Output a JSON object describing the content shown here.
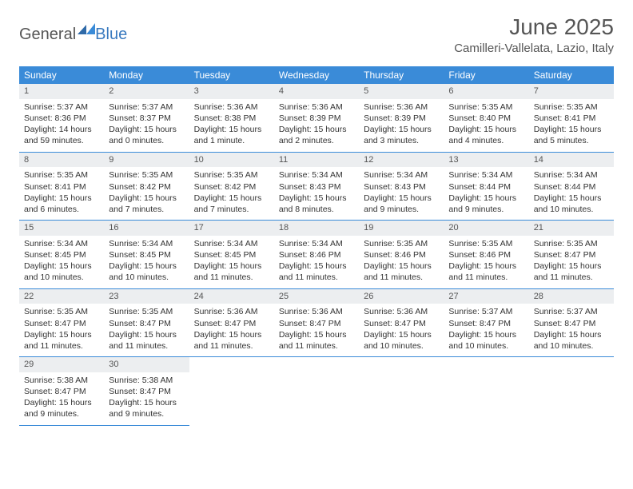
{
  "brand": {
    "part1": "General",
    "part2": "Blue"
  },
  "title": "June 2025",
  "location": "Camilleri-Vallelata, Lazio, Italy",
  "colors": {
    "header_bg": "#3a8bd8",
    "header_text": "#ffffff",
    "daynum_bg": "#eceef0",
    "border": "#3a8bd8",
    "brand_blue": "#3a7abf",
    "text": "#333333"
  },
  "weekdays": [
    "Sunday",
    "Monday",
    "Tuesday",
    "Wednesday",
    "Thursday",
    "Friday",
    "Saturday"
  ],
  "days": [
    {
      "n": "1",
      "sr": "Sunrise: 5:37 AM",
      "ss": "Sunset: 8:36 PM",
      "dl": "Daylight: 14 hours and 59 minutes."
    },
    {
      "n": "2",
      "sr": "Sunrise: 5:37 AM",
      "ss": "Sunset: 8:37 PM",
      "dl": "Daylight: 15 hours and 0 minutes."
    },
    {
      "n": "3",
      "sr": "Sunrise: 5:36 AM",
      "ss": "Sunset: 8:38 PM",
      "dl": "Daylight: 15 hours and 1 minute."
    },
    {
      "n": "4",
      "sr": "Sunrise: 5:36 AM",
      "ss": "Sunset: 8:39 PM",
      "dl": "Daylight: 15 hours and 2 minutes."
    },
    {
      "n": "5",
      "sr": "Sunrise: 5:36 AM",
      "ss": "Sunset: 8:39 PM",
      "dl": "Daylight: 15 hours and 3 minutes."
    },
    {
      "n": "6",
      "sr": "Sunrise: 5:35 AM",
      "ss": "Sunset: 8:40 PM",
      "dl": "Daylight: 15 hours and 4 minutes."
    },
    {
      "n": "7",
      "sr": "Sunrise: 5:35 AM",
      "ss": "Sunset: 8:41 PM",
      "dl": "Daylight: 15 hours and 5 minutes."
    },
    {
      "n": "8",
      "sr": "Sunrise: 5:35 AM",
      "ss": "Sunset: 8:41 PM",
      "dl": "Daylight: 15 hours and 6 minutes."
    },
    {
      "n": "9",
      "sr": "Sunrise: 5:35 AM",
      "ss": "Sunset: 8:42 PM",
      "dl": "Daylight: 15 hours and 7 minutes."
    },
    {
      "n": "10",
      "sr": "Sunrise: 5:35 AM",
      "ss": "Sunset: 8:42 PM",
      "dl": "Daylight: 15 hours and 7 minutes."
    },
    {
      "n": "11",
      "sr": "Sunrise: 5:34 AM",
      "ss": "Sunset: 8:43 PM",
      "dl": "Daylight: 15 hours and 8 minutes."
    },
    {
      "n": "12",
      "sr": "Sunrise: 5:34 AM",
      "ss": "Sunset: 8:43 PM",
      "dl": "Daylight: 15 hours and 9 minutes."
    },
    {
      "n": "13",
      "sr": "Sunrise: 5:34 AM",
      "ss": "Sunset: 8:44 PM",
      "dl": "Daylight: 15 hours and 9 minutes."
    },
    {
      "n": "14",
      "sr": "Sunrise: 5:34 AM",
      "ss": "Sunset: 8:44 PM",
      "dl": "Daylight: 15 hours and 10 minutes."
    },
    {
      "n": "15",
      "sr": "Sunrise: 5:34 AM",
      "ss": "Sunset: 8:45 PM",
      "dl": "Daylight: 15 hours and 10 minutes."
    },
    {
      "n": "16",
      "sr": "Sunrise: 5:34 AM",
      "ss": "Sunset: 8:45 PM",
      "dl": "Daylight: 15 hours and 10 minutes."
    },
    {
      "n": "17",
      "sr": "Sunrise: 5:34 AM",
      "ss": "Sunset: 8:45 PM",
      "dl": "Daylight: 15 hours and 11 minutes."
    },
    {
      "n": "18",
      "sr": "Sunrise: 5:34 AM",
      "ss": "Sunset: 8:46 PM",
      "dl": "Daylight: 15 hours and 11 minutes."
    },
    {
      "n": "19",
      "sr": "Sunrise: 5:35 AM",
      "ss": "Sunset: 8:46 PM",
      "dl": "Daylight: 15 hours and 11 minutes."
    },
    {
      "n": "20",
      "sr": "Sunrise: 5:35 AM",
      "ss": "Sunset: 8:46 PM",
      "dl": "Daylight: 15 hours and 11 minutes."
    },
    {
      "n": "21",
      "sr": "Sunrise: 5:35 AM",
      "ss": "Sunset: 8:47 PM",
      "dl": "Daylight: 15 hours and 11 minutes."
    },
    {
      "n": "22",
      "sr": "Sunrise: 5:35 AM",
      "ss": "Sunset: 8:47 PM",
      "dl": "Daylight: 15 hours and 11 minutes."
    },
    {
      "n": "23",
      "sr": "Sunrise: 5:35 AM",
      "ss": "Sunset: 8:47 PM",
      "dl": "Daylight: 15 hours and 11 minutes."
    },
    {
      "n": "24",
      "sr": "Sunrise: 5:36 AM",
      "ss": "Sunset: 8:47 PM",
      "dl": "Daylight: 15 hours and 11 minutes."
    },
    {
      "n": "25",
      "sr": "Sunrise: 5:36 AM",
      "ss": "Sunset: 8:47 PM",
      "dl": "Daylight: 15 hours and 11 minutes."
    },
    {
      "n": "26",
      "sr": "Sunrise: 5:36 AM",
      "ss": "Sunset: 8:47 PM",
      "dl": "Daylight: 15 hours and 10 minutes."
    },
    {
      "n": "27",
      "sr": "Sunrise: 5:37 AM",
      "ss": "Sunset: 8:47 PM",
      "dl": "Daylight: 15 hours and 10 minutes."
    },
    {
      "n": "28",
      "sr": "Sunrise: 5:37 AM",
      "ss": "Sunset: 8:47 PM",
      "dl": "Daylight: 15 hours and 10 minutes."
    },
    {
      "n": "29",
      "sr": "Sunrise: 5:38 AM",
      "ss": "Sunset: 8:47 PM",
      "dl": "Daylight: 15 hours and 9 minutes."
    },
    {
      "n": "30",
      "sr": "Sunrise: 5:38 AM",
      "ss": "Sunset: 8:47 PM",
      "dl": "Daylight: 15 hours and 9 minutes."
    }
  ]
}
